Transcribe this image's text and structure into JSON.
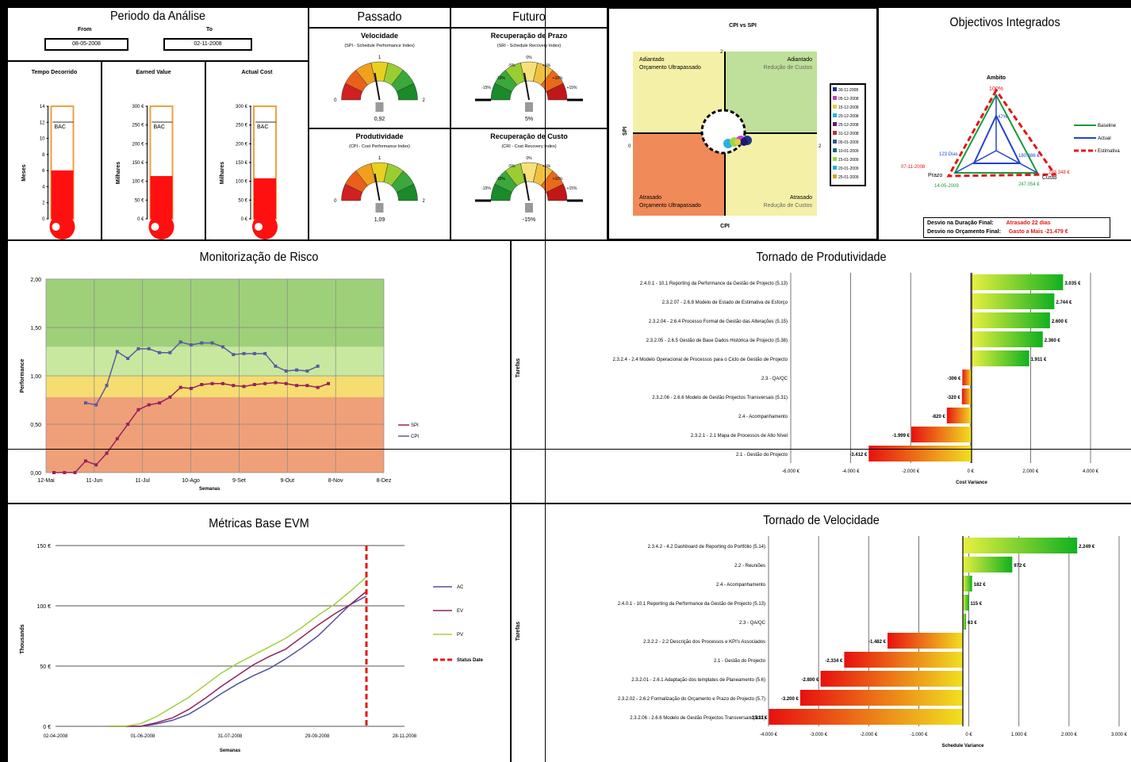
{
  "periodo": {
    "title": "Periodo da Análise",
    "from_label": "From",
    "to_label": "To",
    "from_value": "08-05-2008",
    "to_value": "02-11-2008"
  },
  "thermometers": [
    {
      "title": "Tempo Decorrido",
      "ylabel": "Meses",
      "ticks": [
        "14",
        "12",
        "10",
        "8",
        "6",
        "4",
        "2",
        "0"
      ],
      "bac_label": "BAC",
      "fill": 0.43
    },
    {
      "title": "Earned Value",
      "ylabel": "Milhares",
      "ticks": [
        "300 €",
        "250 €",
        "200 €",
        "150 €",
        "100 €",
        "50 €",
        "0 €"
      ],
      "bac_label": "BAC",
      "fill": 0.38
    },
    {
      "title": "Actual Cost",
      "ylabel": "Milhares",
      "ticks": [
        "300 €",
        "250 €",
        "200 €",
        "150 €",
        "100 €",
        "50 €",
        "0 €"
      ],
      "bac_label": "BAC",
      "fill": 0.36
    }
  ],
  "passado": {
    "title": "Passado"
  },
  "futuro": {
    "title": "Futuro"
  },
  "gauges": [
    {
      "title": "Velocidade",
      "subtitle": "(SPI - Schedule Performance Index)",
      "value_label": "0,92",
      "min": "0",
      "max": "2",
      "mid": "1"
    },
    {
      "title": "Recuperação de Prazo",
      "subtitle": "(SRI - Schedule Recovery Index)",
      "value_label": "5%",
      "ticks": [
        "-10%",
        "-5%",
        "0%",
        "+5%",
        "+10%",
        "-15%",
        "+15%"
      ]
    },
    {
      "title": "Produtividade",
      "subtitle": "(CPI - Cost Performance Index)",
      "value_label": "1,09",
      "min": "0",
      "max": "2",
      "mid": "1"
    },
    {
      "title": "Recuperação de Custo",
      "subtitle": "(CRI - Cost Recovery Index)",
      "value_label": "-15%",
      "ticks": [
        "-10%",
        "-5%",
        "0%",
        "+5%",
        "+10%",
        "-15%",
        "+15%"
      ]
    }
  ],
  "cpi_spi": {
    "title": "CPI vs SPI",
    "xlabel": "CPI",
    "ylabel": "SPI",
    "q_tl": [
      "Adiantado",
      "Orçamento Ultrapassado"
    ],
    "q_tr": [
      "Adiantado",
      "Redução de Custos"
    ],
    "q_bl": [
      "Atrasado",
      "Orçamento Ultrapassado"
    ],
    "q_br": [
      "Atrasado",
      "Redução de Custos"
    ],
    "axis_top": "2",
    "axis_left": "0",
    "axis_right": "2",
    "legend": [
      "30-11-2008",
      "05-12-2008",
      "15-12-2008",
      "20-12-2008",
      "25-12-2008",
      "31-12-2008",
      "05-01-2009",
      "10-01-2009",
      "15-01-2009",
      "20-01-2009",
      "25-01-2009"
    ]
  },
  "objectivos": {
    "title": "Objectivos Integrados",
    "ambito": "Ambito",
    "ambito_pct": "100%",
    "inner_pct": "47%",
    "prazo": "Prazo",
    "custo": "Custo",
    "d1": "123 Dias",
    "d2": "180.386 €",
    "d3": "07-11-2008",
    "d4": "14-05-2009",
    "d5": "247.054 €",
    "d6": "293.348 €",
    "legend": [
      "Baseline",
      "Actual",
      "Estimativa"
    ],
    "desvio_prazo_label": "Desvio na Duração Final:",
    "desvio_prazo_value": "Atrasado 22 dias",
    "desvio_orc_label": "Desvio no Orçamento Final:",
    "desvio_orc_value": "Gasto a Mais -21.479 €"
  },
  "risco": {
    "title": "Monitorização de Risco",
    "ylabel": "Performance",
    "xlabel": "Semanas",
    "yticks": [
      "2,00",
      "1,50",
      "1,00",
      "0,50",
      "0,00"
    ],
    "xticks": [
      "12-Mai",
      "11-Jun",
      "11-Jul",
      "10-Ago",
      "9-Set",
      "9-Out",
      "8-Nov",
      "8-Dez"
    ],
    "legend": [
      "SPI",
      "CPI"
    ]
  },
  "chart_data": [
    {
      "type": "line",
      "title": "Monitorização de Risco",
      "xlabel": "Semanas",
      "ylabel": "Performance",
      "ylim": [
        0,
        2
      ],
      "series": [
        {
          "name": "SPI",
          "values": [
            0,
            0,
            0,
            0.12,
            0.08,
            0.2,
            0.35,
            0.5,
            0.65,
            0.7,
            0.72,
            0.78,
            0.88,
            0.87,
            0.91,
            0.92,
            0.92,
            0.9,
            0.89,
            0.91,
            0.92,
            0.93,
            0.92,
            0.9,
            0.9,
            0.88,
            0.92
          ]
        },
        {
          "name": "CPI",
          "values": [
            null,
            null,
            null,
            0.72,
            0.7,
            0.9,
            1.25,
            1.18,
            1.28,
            1.28,
            1.24,
            1.24,
            1.35,
            1.32,
            1.34,
            1.34,
            1.3,
            1.22,
            1.23,
            1.23,
            1.23,
            1.1,
            1.05,
            1.06,
            1.05,
            1.1,
            null
          ]
        }
      ]
    },
    {
      "type": "line",
      "title": "Métricas Base EVM",
      "xlabel": "Semanas",
      "ylabel": "Thousands",
      "xticks": [
        "02-04-2008",
        "01-06-2008",
        "31-07-2008",
        "29-09-2008",
        "28-11-2008"
      ],
      "yticks": [
        "150 €",
        "100 €",
        "50 €",
        "0 €"
      ],
      "series": [
        {
          "name": "AC",
          "values": [
            0,
            0,
            0,
            2,
            5,
            10,
            18,
            27,
            35,
            42,
            48,
            56,
            65,
            75,
            88,
            101,
            108
          ]
        },
        {
          "name": "EV",
          "values": [
            0,
            0,
            0,
            3,
            7,
            14,
            23,
            33,
            42,
            51,
            58,
            64,
            74,
            84,
            93,
            101,
            112
          ]
        },
        {
          "name": "PV",
          "values": [
            0,
            0,
            2,
            8,
            16,
            24,
            34,
            44,
            52,
            59,
            66,
            73,
            82,
            92,
            101,
            112,
            124
          ]
        }
      ],
      "status_date": "Status Date"
    },
    {
      "type": "bar",
      "title": "Tornado de Produtividade",
      "xlabel": "Cost Variance",
      "ylabel": "Tarefas",
      "xticks": [
        "-6.000 €",
        "-4.000 €",
        "-2.000 €",
        "0 €",
        "2.000 €",
        "4.000 €"
      ],
      "categories": [
        "2.4.0.1 - 10.1 Reporting da Performance da Gestão de Projecto (5.13)",
        "2.3.2.07 - 2.6.8 Modelo de Estado de Estimativa de Esforço",
        "2.3.2.04 - 2.6.4 Processo Formal de Gestão das Alterações (5.15)",
        "2.3.2.05 - 2.6.5 Gestão de Base Dados Histórica de Projecto (5.38)",
        "2.3.2.4 - 2.4 Modelo Operacional de Processos para o Ciclo de Gestão de Projecto",
        "2.3 - QA/QC",
        "2.3.2.06 - 2.6.6 Modelo de Gestão Projectos Transversais (5.31)",
        "2.4 - Acompanhamento",
        "2.3.2.1 - 2.1 Mapa de Processos de Alto Nível",
        "2.1 - Gestão do Projecto"
      ],
      "values": [
        3035,
        2744,
        2600,
        2360,
        1911,
        -306,
        -320,
        -820,
        -1999,
        -3412
      ],
      "value_labels": [
        "3.035 €",
        "2.744 €",
        "2.600 €",
        "2.360 €",
        "1.911 €",
        "-306 €",
        "-320 €",
        "-820 €",
        "-1.999 €",
        "-3.412 €"
      ]
    },
    {
      "type": "bar",
      "title": "Tornado de Velocidade",
      "xlabel": "Schedule Variance",
      "ylabel": "Tarefas",
      "xticks": [
        "-4.000 €",
        "-3.000 €",
        "-2.000 €",
        "-1.000 €",
        "0 €",
        "1.000 €",
        "2.000 €",
        "3.000 €"
      ],
      "categories": [
        "2.3.4.2 - 4.2 Dashboard de Reporting do Portfólio (5.14)",
        "2.2 - Reuniões",
        "2.4 - Acompanhamento",
        "2.4.0.1 - 10.1 Reporting da Performance da Gestão de Projecto (5.13)",
        "2.3 - QA/QC",
        "2.3.2.2 - 2.2 Descrição dos Processos e KPI's Associados",
        "2.1 - Gestão do Projecto",
        "2.3.2.01 - 2.6.1 Adaptação dos templates de Planeamento (5.6)",
        "2.3.2.02 - 2.6.2 Formalização do Orçamento e Prazo do Projecto (5.7)",
        "2.3.2.06 - 2.6.6 Modelo de Gestão Projectos Transversais (5.31)"
      ],
      "values": [
        2249,
        972,
        182,
        115,
        63,
        -1482,
        -2334,
        -2800,
        -3200,
        -3813
      ],
      "value_labels": [
        "2.249 €",
        "972 €",
        "182 €",
        "115 €",
        "63 €",
        "-1.482 €",
        "-2.334 €",
        "-2.800 €",
        "-3.200 €",
        "-3.813 €"
      ]
    }
  ],
  "evm": {
    "title": "Métricas Base EVM",
    "xlabel": "Semanas",
    "ylabel": "Thousands",
    "legend": [
      "AC",
      "EV",
      "PV",
      "Status Date"
    ]
  },
  "prod": {
    "title": "Tornado de Produtividade",
    "ylabel": "Tarefas",
    "xlabel": "Cost Variance"
  },
  "vel": {
    "title": "Tornado de Velocidade",
    "ylabel": "Tarefas",
    "xlabel": "Schedule Variance"
  }
}
